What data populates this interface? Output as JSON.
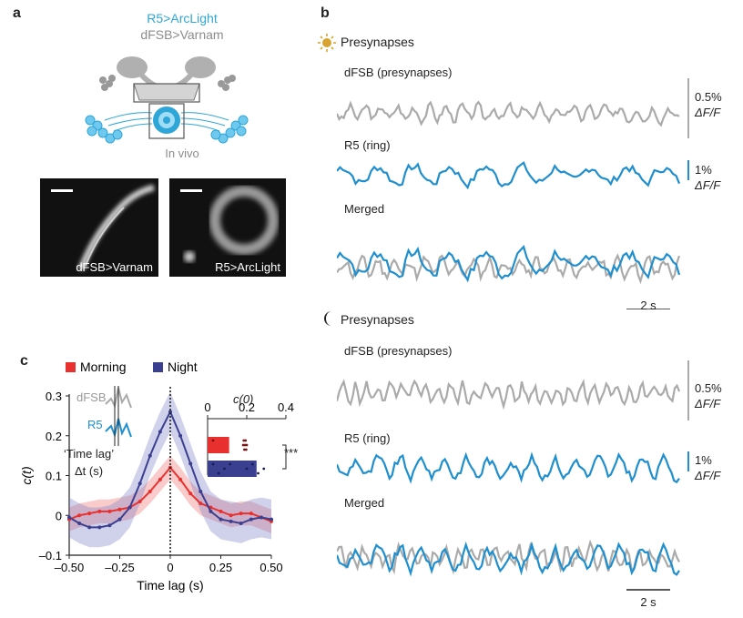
{
  "panel_a": {
    "label": "a",
    "line1": "R5>ArcLight",
    "line2": "dFSB>Varnam",
    "invivo": "In vivo",
    "image1_caption": "dFSB>Varnam",
    "image2_caption": "R5>ArcLight",
    "colors": {
      "arclight": "#2ea6d8",
      "varnam": "#8c8c8c"
    }
  },
  "panel_b": {
    "label": "b",
    "day": {
      "icon": "sun-icon",
      "title": "Presynapses",
      "trace1_label": "dFSB (presynapses)",
      "trace2_label": "R5 (ring)",
      "merged_label": "Merged",
      "scale1_value": "0.5%",
      "scale1_unit": "ΔF/F",
      "scale2_value": "1%",
      "scale2_unit": "ΔF/F",
      "time_scale": "2 s"
    },
    "night": {
      "icon": "moon-icon",
      "title": "Presynapses",
      "trace1_label": "dFSB (presynapses)",
      "trace2_label": "R5 (ring)",
      "merged_label": "Merged",
      "scale1_value": "0.5%",
      "scale1_unit": "ΔF/F",
      "scale2_value": "1%",
      "scale2_unit": "ΔF/F",
      "time_scale": "2 s"
    },
    "colors": {
      "dfsb": "#aaaaaa",
      "r5": "#1f8fcf"
    }
  },
  "panel_c": {
    "label": "c",
    "inset_dfsb": "dFSB",
    "inset_r5": "R5",
    "inset_lag_text": "‘Time lag’",
    "inset_lag_symbol": "Δt (s)",
    "bar_axis_title": "c(0)",
    "bar_ticks": [
      "0",
      "0.2",
      "0.4"
    ],
    "significance": "***",
    "colors": {
      "morning": "#e8312f",
      "night": "#3b3f8f"
    }
  },
  "chart_data": {
    "type": "line",
    "xlabel": "Time lag (s)",
    "ylabel": "c(t)",
    "xlim": [
      -0.5,
      0.5
    ],
    "ylim": [
      -0.1,
      0.3
    ],
    "xticks": [
      "–0.50",
      "–0.25",
      "0",
      "0.25",
      "0.50"
    ],
    "yticks": [
      "–0.1",
      "0",
      "0.1",
      "0.2",
      "0.3"
    ],
    "legend": [
      "Morning",
      "Night"
    ],
    "legend_placement": "top",
    "x": [
      -0.5,
      -0.45,
      -0.4,
      -0.35,
      -0.3,
      -0.25,
      -0.2,
      -0.15,
      -0.1,
      -0.05,
      0,
      0.05,
      0.1,
      0.15,
      0.2,
      0.25,
      0.3,
      0.35,
      0.4,
      0.45,
      0.5
    ],
    "series": [
      {
        "name": "Morning",
        "values": [
          -0.01,
          0.0,
          0.005,
          0.01,
          0.01,
          0.015,
          0.02,
          0.035,
          0.06,
          0.09,
          0.12,
          0.09,
          0.055,
          0.03,
          0.02,
          0.01,
          0.0,
          0.005,
          0.005,
          -0.005,
          -0.015
        ],
        "err": [
          0.03,
          0.03,
          0.03,
          0.03,
          0.03,
          0.03,
          0.03,
          0.03,
          0.03,
          0.03,
          0.03,
          0.03,
          0.03,
          0.03,
          0.03,
          0.03,
          0.03,
          0.03,
          0.03,
          0.03,
          0.03
        ]
      },
      {
        "name": "Night",
        "values": [
          -0.005,
          -0.02,
          -0.03,
          -0.03,
          -0.025,
          -0.01,
          0.02,
          0.08,
          0.15,
          0.21,
          0.26,
          0.2,
          0.13,
          0.06,
          0.01,
          -0.01,
          -0.015,
          -0.02,
          -0.01,
          -0.005,
          -0.01
        ],
        "err": [
          0.05,
          0.05,
          0.05,
          0.05,
          0.05,
          0.05,
          0.05,
          0.05,
          0.05,
          0.05,
          0.05,
          0.05,
          0.05,
          0.05,
          0.05,
          0.05,
          0.05,
          0.05,
          0.05,
          0.05,
          0.05
        ]
      }
    ],
    "inset_bar": {
      "type": "bar",
      "categories": [
        "Morning",
        "Night"
      ],
      "values": [
        0.11,
        0.25
      ],
      "xlim": [
        0,
        0.4
      ]
    }
  }
}
